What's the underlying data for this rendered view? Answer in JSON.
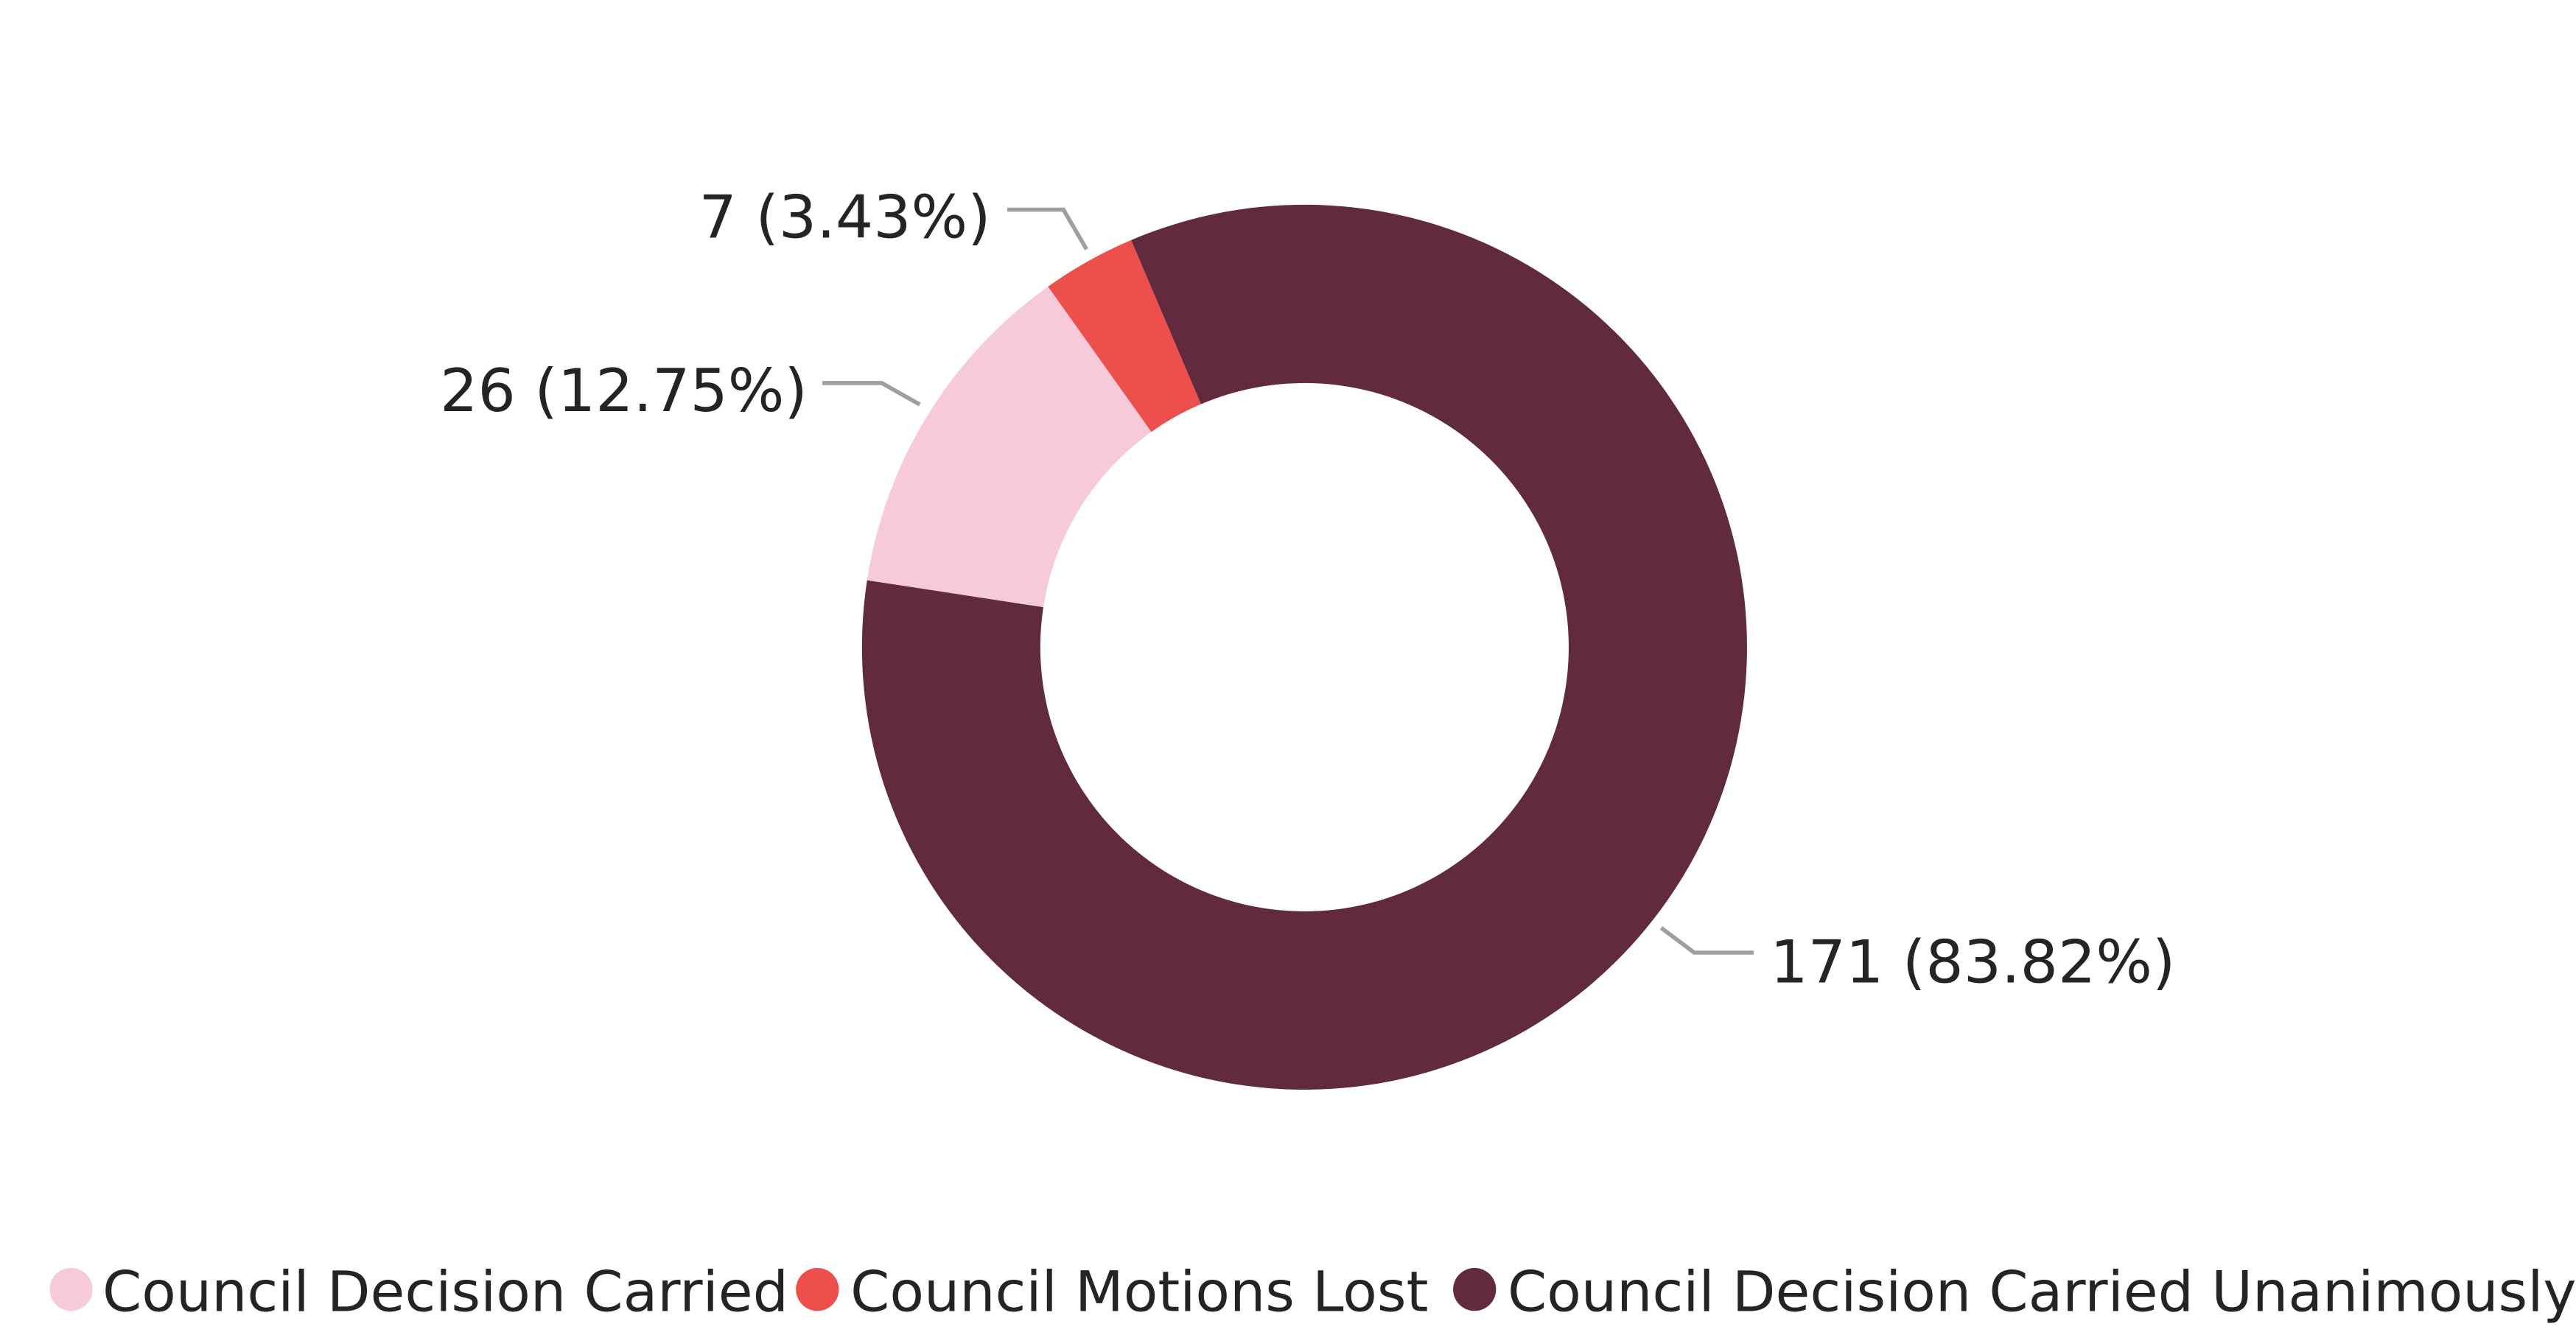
{
  "chart_data": {
    "type": "pie",
    "variant": "donut",
    "categories": [
      "Council Decision Carried",
      "Council Motions Lost",
      "Council Decision Carried Unanimously"
    ],
    "values": [
      26,
      7,
      171
    ],
    "percentages": [
      12.75,
      3.43,
      83.82
    ],
    "data_labels": [
      "26 (12.75%)",
      "7 (3.43%)",
      "171 (83.82%)"
    ],
    "colors": [
      "#F6CAD8",
      "#EC4F4C",
      "#612A3F"
    ],
    "legend": {
      "placement": "bottom",
      "entries": [
        "Council Decision Carried",
        "Council Motions Lost",
        "Council Decision Carried Unanimously"
      ]
    }
  }
}
